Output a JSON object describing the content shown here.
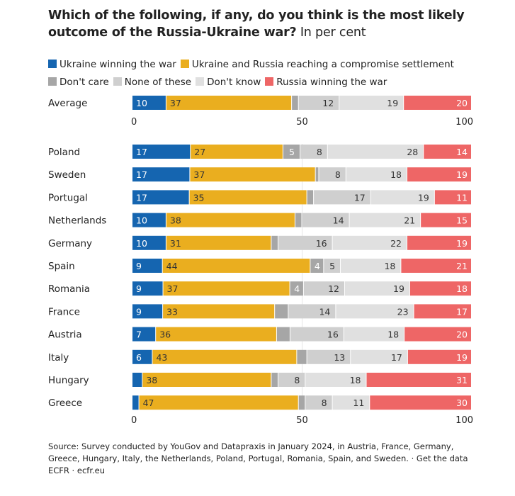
{
  "title": {
    "bold": "Which of the following, if any, do you think is the most likely outcome of the Russia-Ukraine war?",
    "regular": "In per cent"
  },
  "colors": {
    "ukraine": "#1565b0",
    "compromise": "#eaae1f",
    "dont_care": "#a6a6a6",
    "none": "#cfcfcf",
    "dont_know": "#e0e0e0",
    "russia": "#ee6666"
  },
  "chart_data": {
    "type": "bar",
    "orientation": "horizontal",
    "stacked": true,
    "xlim": [
      0,
      100
    ],
    "x_ticks": [
      0,
      50,
      100
    ],
    "legend_position": "top",
    "series": [
      {
        "key": "ukraine",
        "name": "Ukraine winning the war"
      },
      {
        "key": "compromise",
        "name": "Ukraine and Russia reaching a compromise settlement"
      },
      {
        "key": "dont_care",
        "name": "Don't care"
      },
      {
        "key": "none",
        "name": "None of these"
      },
      {
        "key": "dont_know",
        "name": "Don't know"
      },
      {
        "key": "russia",
        "name": "Russia winning the war"
      }
    ],
    "average": {
      "label": "Average",
      "values": [
        10,
        37,
        2,
        12,
        19,
        20
      ],
      "labels": [
        "10",
        "37",
        "",
        "12",
        "19",
        "20"
      ]
    },
    "rows": [
      {
        "label": "Poland",
        "values": [
          17,
          27,
          5,
          8,
          28,
          14
        ],
        "labels": [
          "17",
          "27",
          "5",
          "8",
          "28",
          "14"
        ]
      },
      {
        "label": "Sweden",
        "values": [
          17,
          37,
          1,
          8,
          18,
          19
        ],
        "labels": [
          "17",
          "37",
          "",
          "8",
          "18",
          "19"
        ]
      },
      {
        "label": "Portugal",
        "values": [
          17,
          35,
          2,
          17,
          19,
          11
        ],
        "labels": [
          "17",
          "35",
          "",
          "17",
          "19",
          "11"
        ]
      },
      {
        "label": "Netherlands",
        "values": [
          10,
          38,
          2,
          14,
          21,
          15
        ],
        "labels": [
          "10",
          "38",
          "",
          "14",
          "21",
          "15"
        ]
      },
      {
        "label": "Germany",
        "values": [
          10,
          31,
          2,
          16,
          22,
          19
        ],
        "labels": [
          "10",
          "31",
          "",
          "16",
          "22",
          "19"
        ]
      },
      {
        "label": "Spain",
        "values": [
          9,
          44,
          4,
          5,
          18,
          21
        ],
        "labels": [
          "9",
          "44",
          "4",
          "5",
          "18",
          "21"
        ]
      },
      {
        "label": "Romania",
        "values": [
          9,
          37,
          4,
          12,
          19,
          18
        ],
        "labels": [
          "9",
          "37",
          "4",
          "12",
          "19",
          "18"
        ]
      },
      {
        "label": "France",
        "values": [
          9,
          33,
          4,
          14,
          23,
          17
        ],
        "labels": [
          "9",
          "33",
          "",
          "14",
          "23",
          "17"
        ]
      },
      {
        "label": "Austria",
        "values": [
          7,
          36,
          4,
          16,
          18,
          20
        ],
        "labels": [
          "7",
          "36",
          "",
          "16",
          "18",
          "20"
        ]
      },
      {
        "label": "Italy",
        "values": [
          6,
          43,
          3,
          13,
          17,
          19
        ],
        "labels": [
          "6",
          "43",
          "",
          "13",
          "17",
          "19"
        ]
      },
      {
        "label": "Hungary",
        "values": [
          3,
          38,
          2,
          8,
          18,
          31
        ],
        "labels": [
          "",
          "38",
          "",
          "8",
          "18",
          "31"
        ]
      },
      {
        "label": "Greece",
        "values": [
          2,
          47,
          2,
          8,
          11,
          30
        ],
        "labels": [
          "",
          "47",
          "",
          "8",
          "11",
          "30"
        ]
      }
    ]
  },
  "source": {
    "line1": "Source: Survey conducted by YouGov and Datapraxis in January 2024, in Austria, France, Germany, Greece, Hungary, Italy, the Netherlands, Poland, Portugal, Romania, Spain, and Sweden. · Get the data",
    "line2": "ECFR · ecfr.eu"
  }
}
